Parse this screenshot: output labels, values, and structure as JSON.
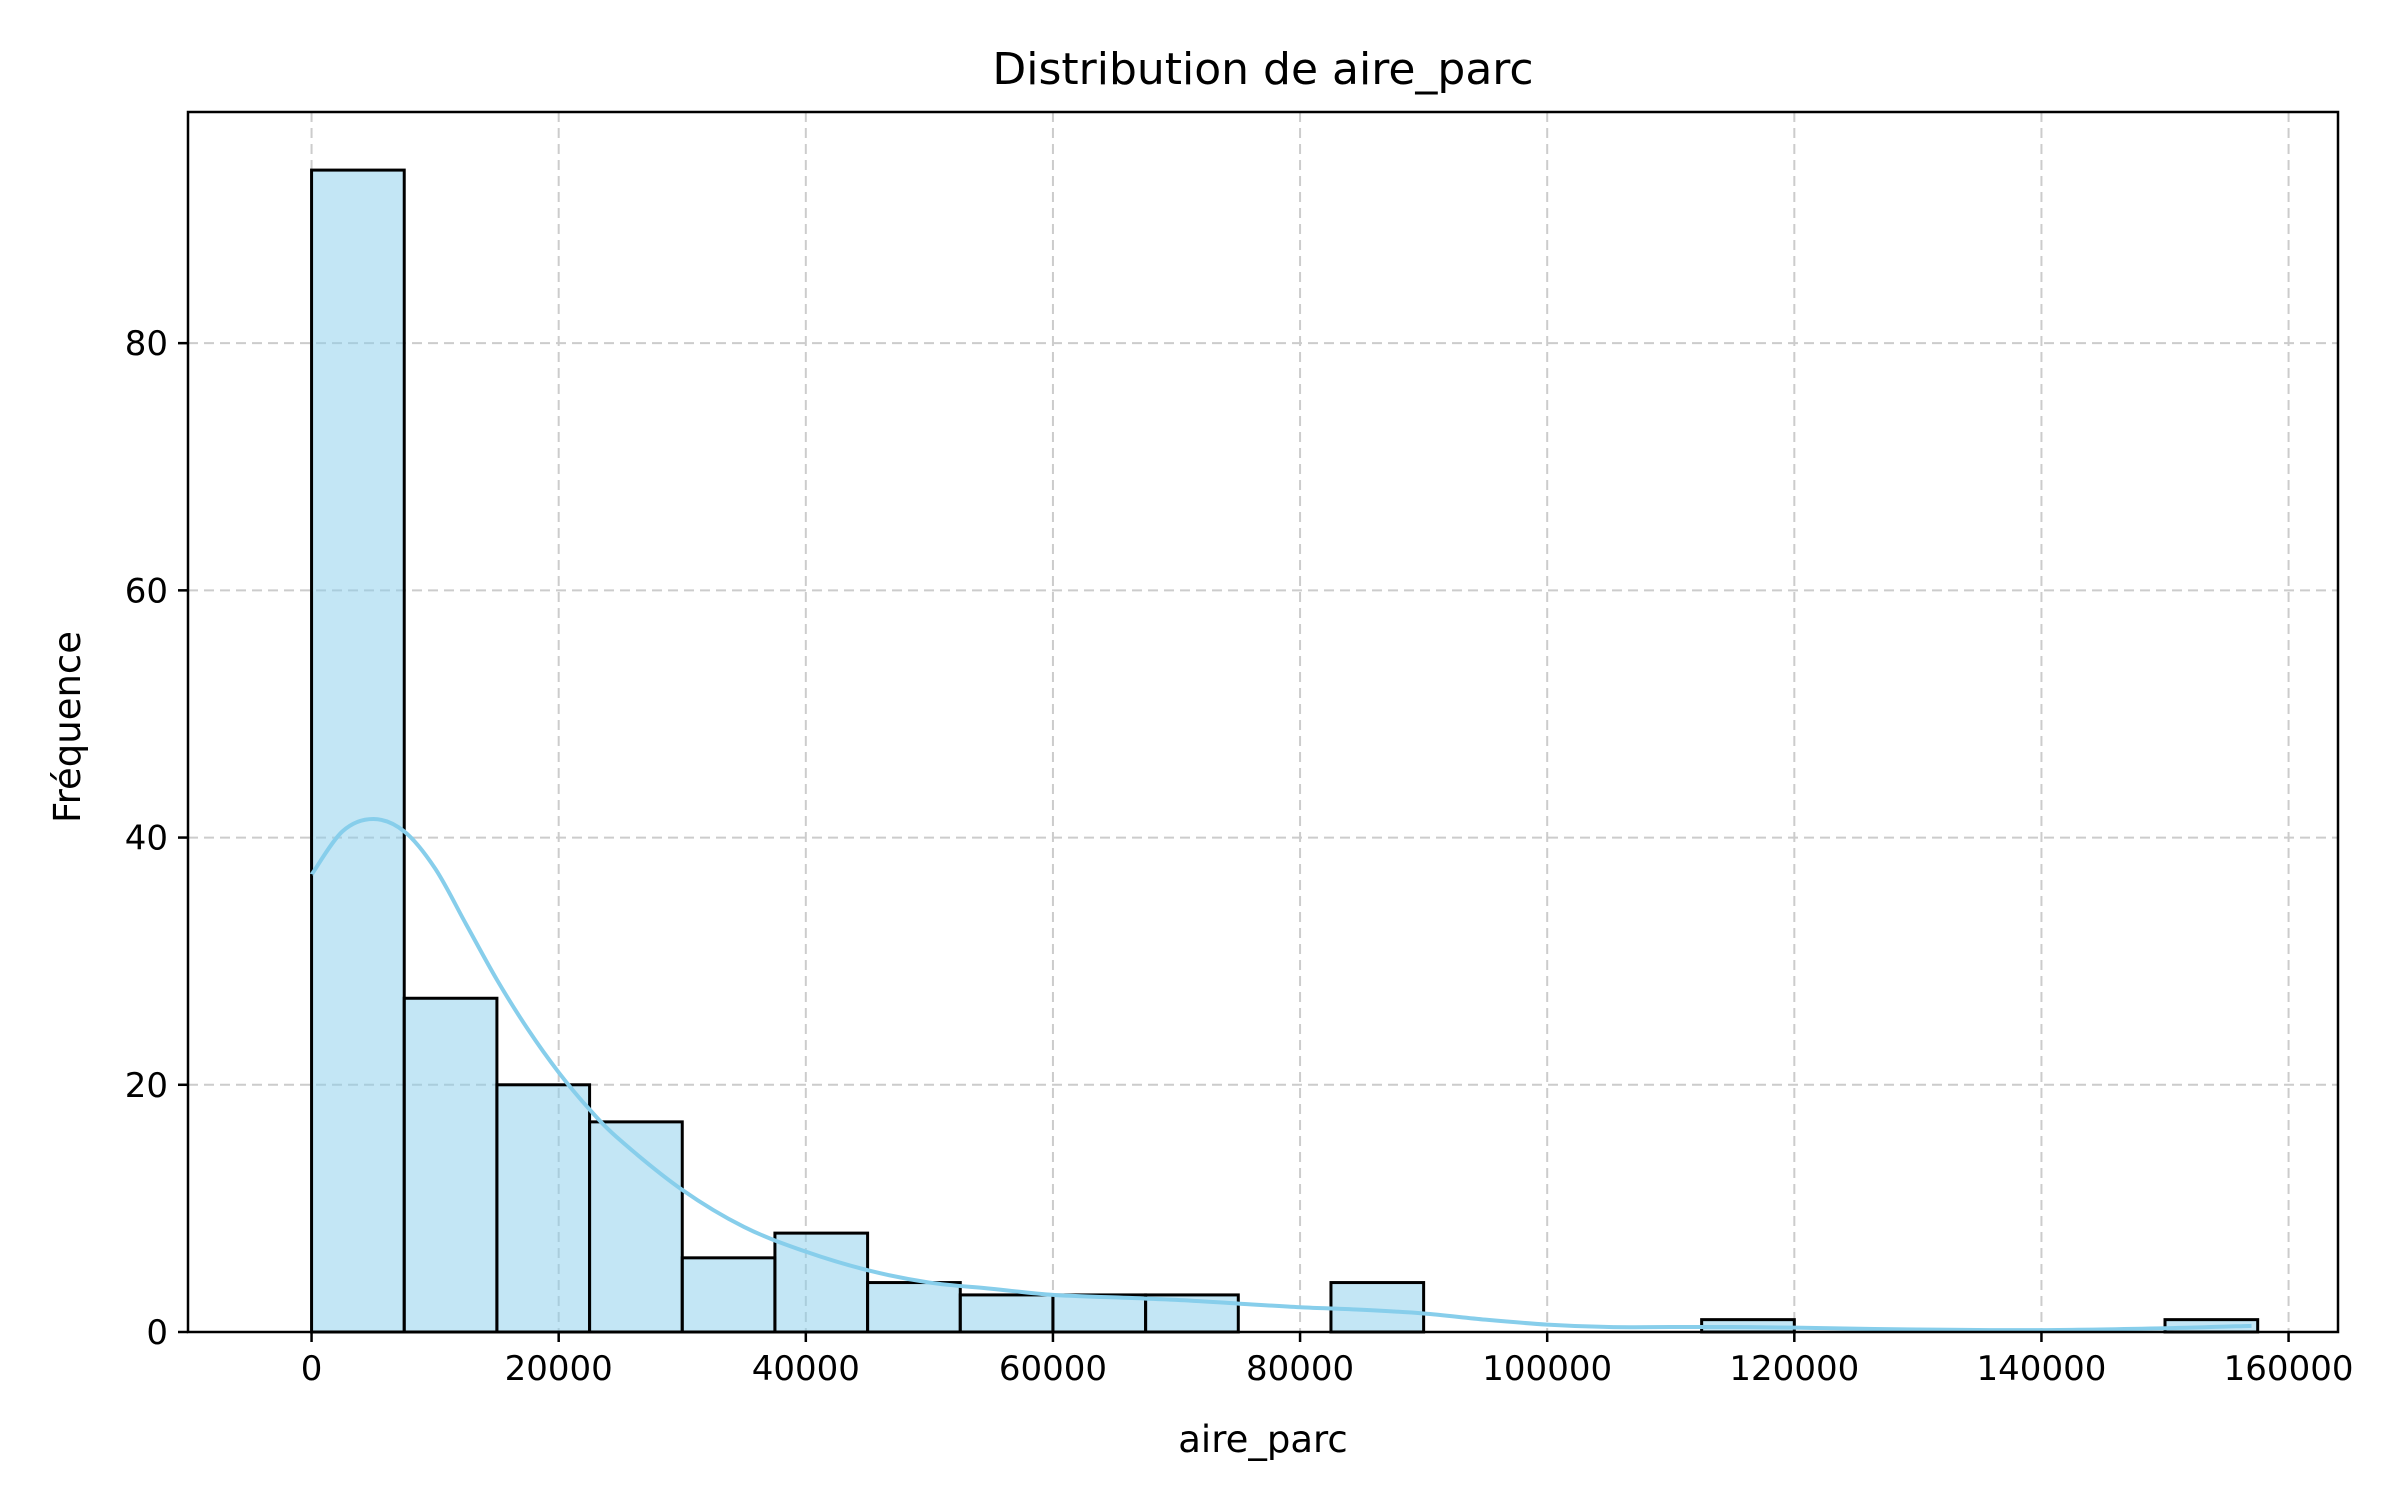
{
  "chart_data": {
    "type": "bar",
    "title": "Distribution de aire_parc",
    "xlabel": "aire_parc",
    "ylabel": "Fréquence",
    "xlim": [
      -10000,
      164000
    ],
    "ylim": [
      0,
      98.7
    ],
    "bin_edges": [
      0,
      7500,
      15000,
      22500,
      30000,
      37500,
      45000,
      52500,
      60000,
      67500,
      75000,
      82500,
      90000,
      97500,
      105000,
      112500,
      120000,
      127500,
      135000,
      142500,
      150000,
      157500
    ],
    "counts": [
      94,
      27,
      20,
      17,
      6,
      8,
      4,
      3,
      3,
      3,
      0,
      4,
      0,
      0,
      0,
      1,
      0,
      0,
      0,
      0,
      1
    ],
    "kde": {
      "x": [
        0,
        2500,
        5000,
        7500,
        10000,
        12500,
        15000,
        17500,
        20000,
        22500,
        25000,
        30000,
        35000,
        40000,
        45000,
        50000,
        55000,
        60000,
        65000,
        70000,
        75000,
        80000,
        85000,
        90000,
        95000,
        100000,
        105000,
        110000,
        115000,
        120000,
        130000,
        140000,
        150000,
        157000
      ],
      "y": [
        37,
        40.5,
        41.5,
        40.5,
        37.5,
        33,
        28.5,
        24.5,
        21,
        18,
        15.5,
        11.5,
        8.5,
        6.5,
        5,
        4,
        3.5,
        3,
        2.8,
        2.6,
        2.3,
        2,
        1.8,
        1.5,
        1,
        0.6,
        0.4,
        0.4,
        0.4,
        0.35,
        0.2,
        0.15,
        0.3,
        0.5
      ]
    },
    "xticks": [
      0,
      20000,
      40000,
      60000,
      80000,
      100000,
      120000,
      140000,
      160000
    ],
    "yticks": [
      0,
      20,
      40,
      60,
      80
    ],
    "grid": true,
    "colors": {
      "bar_fill": "#87ceeb",
      "bar_fill_opacity": 0.5,
      "bar_edge": "#000000",
      "kde_line": "#87ceeb",
      "grid": "#cccccc"
    }
  }
}
